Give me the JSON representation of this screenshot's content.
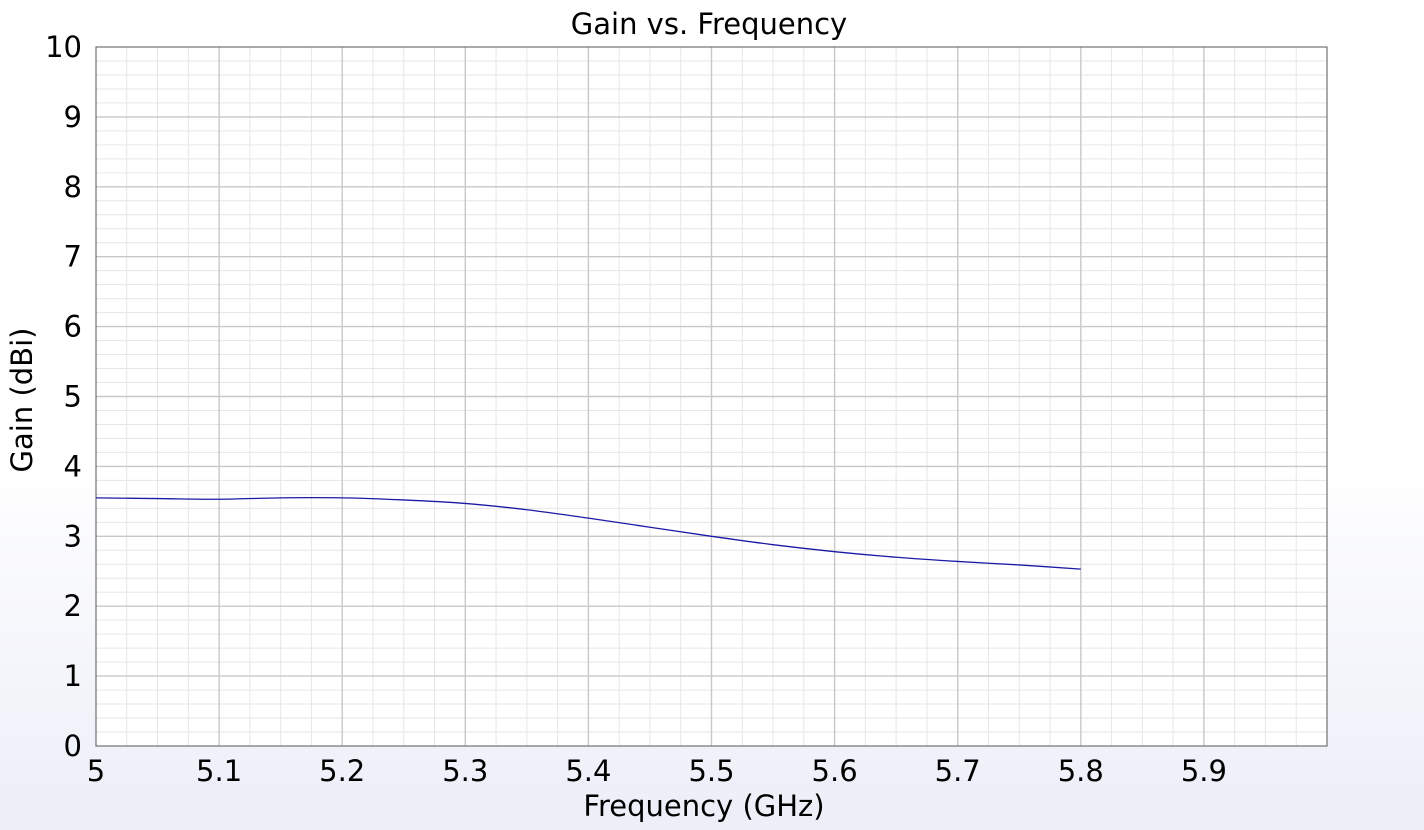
{
  "chart_data": {
    "type": "line",
    "title": "Gain vs. Frequency",
    "xlabel": "Frequency (GHz)",
    "ylabel": "Gain (dBi)",
    "xlim": [
      5.0,
      6.0
    ],
    "ylim": [
      0,
      10
    ],
    "x_ticks": [
      "5",
      "5.1",
      "5.2",
      "5.3",
      "5.4",
      "5.5",
      "5.6",
      "5.7",
      "5.8",
      "5.9"
    ],
    "y_ticks": [
      "0",
      "1",
      "2",
      "3",
      "4",
      "5",
      "6",
      "7",
      "8",
      "9",
      "10"
    ],
    "grid": true,
    "series": [
      {
        "color": "#1a1aa6",
        "x": [
          5.0,
          5.05,
          5.1,
          5.15,
          5.2,
          5.25,
          5.3,
          5.35,
          5.4,
          5.45,
          5.5,
          5.55,
          5.6,
          5.65,
          5.7,
          5.75,
          5.8
        ],
        "y": [
          3.55,
          3.54,
          3.53,
          3.55,
          3.55,
          3.52,
          3.47,
          3.38,
          3.26,
          3.13,
          3.0,
          2.88,
          2.78,
          2.7,
          2.64,
          2.59,
          2.53
        ]
      }
    ]
  }
}
